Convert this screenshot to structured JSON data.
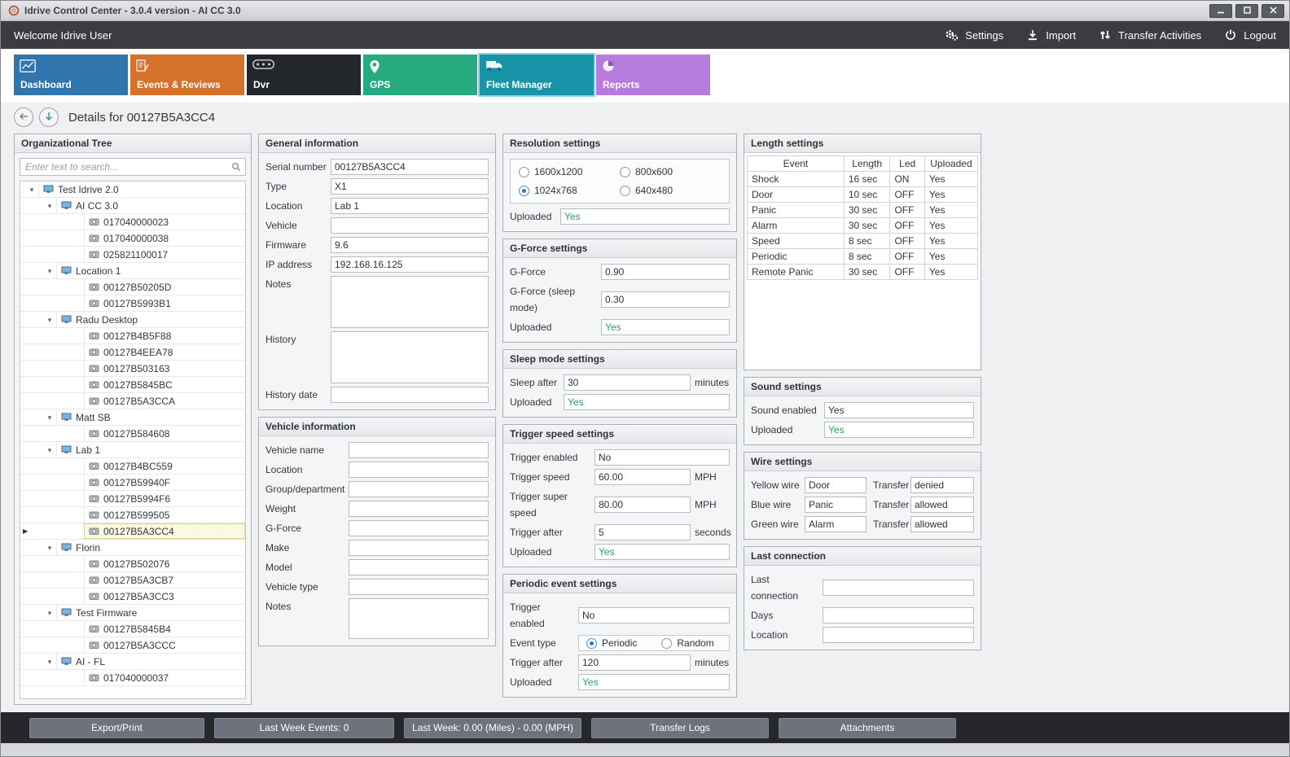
{
  "window": {
    "title": "Idrive Control Center - 3.0.4 version - AI CC 3.0",
    "controls": [
      {
        "id": "minimize",
        "icon": "minimize-icon"
      },
      {
        "id": "maximize",
        "icon": "maximize-icon"
      },
      {
        "id": "close",
        "icon": "close-icon"
      }
    ]
  },
  "toolbar": {
    "welcome": "Welcome Idrive User",
    "actions": [
      {
        "id": "settings",
        "label": "Settings",
        "icon": "gears-icon"
      },
      {
        "id": "import",
        "label": "Import",
        "icon": "import-icon"
      },
      {
        "id": "transfer-activities",
        "label": "Transfer Activities",
        "icon": "transfer-icon"
      },
      {
        "id": "logout",
        "label": "Logout",
        "icon": "power-icon"
      }
    ]
  },
  "tabs": [
    {
      "label": "Dashboard",
      "color": "#2E76AD",
      "icon": "dashboard-icon",
      "selected": false
    },
    {
      "label": "Events & Reviews",
      "color": "#D4712B",
      "icon": "events-icon",
      "selected": false
    },
    {
      "label": "Dvr",
      "color": "#23262B",
      "icon": "dvr-icon",
      "selected": false
    },
    {
      "label": "GPS",
      "color": "#27AA80",
      "icon": "gps-icon",
      "selected": false
    },
    {
      "label": "Fleet Manager",
      "color": "#1794A7",
      "icon": "fleet-icon",
      "selected": true
    },
    {
      "label": "Reports",
      "color": "#B77ADF",
      "icon": "reports-icon",
      "selected": false
    }
  ],
  "details": {
    "title": "Details for 00127B5A3CC4"
  },
  "org_tree": {
    "title": "Organizational Tree",
    "search_placeholder": "Enter text to search...",
    "items": [
      {
        "label": "Test Idrive 2.0",
        "level": 0,
        "type": "group",
        "expanded": true
      },
      {
        "label": "AI CC 3.0",
        "level": 1,
        "type": "group",
        "expanded": true
      },
      {
        "label": "017040000023",
        "level": 2,
        "type": "device"
      },
      {
        "label": "017040000038",
        "level": 2,
        "type": "device"
      },
      {
        "label": "025821100017",
        "level": 2,
        "type": "device"
      },
      {
        "label": "Location 1",
        "level": 1,
        "type": "group",
        "expanded": true
      },
      {
        "label": "00127B50205D",
        "level": 2,
        "type": "device"
      },
      {
        "label": "00127B5993B1",
        "level": 2,
        "type": "device"
      },
      {
        "label": "Radu Desktop",
        "level": 1,
        "type": "group",
        "expanded": true
      },
      {
        "label": "00127B4B5F88",
        "level": 2,
        "type": "device"
      },
      {
        "label": "00127B4EEA78",
        "level": 2,
        "type": "device"
      },
      {
        "label": "00127B503163",
        "level": 2,
        "type": "device"
      },
      {
        "label": "00127B5845BC",
        "level": 2,
        "type": "device"
      },
      {
        "label": "00127B5A3CCA",
        "level": 2,
        "type": "device"
      },
      {
        "label": "Matt SB",
        "level": 1,
        "type": "group",
        "expanded": true
      },
      {
        "label": "00127B584608",
        "level": 2,
        "type": "device"
      },
      {
        "label": "Lab 1",
        "level": 1,
        "type": "group",
        "expanded": true
      },
      {
        "label": "00127B4BC559",
        "level": 2,
        "type": "device"
      },
      {
        "label": "00127B59940F",
        "level": 2,
        "type": "device"
      },
      {
        "label": "00127B5994F6",
        "level": 2,
        "type": "device"
      },
      {
        "label": "00127B599505",
        "level": 2,
        "type": "device"
      },
      {
        "label": "00127B5A3CC4",
        "level": 2,
        "type": "device",
        "selected": true
      },
      {
        "label": "Florin",
        "level": 1,
        "type": "group",
        "expanded": true
      },
      {
        "label": "00127B502076",
        "level": 2,
        "type": "device"
      },
      {
        "label": "00127B5A3CB7",
        "level": 2,
        "type": "device"
      },
      {
        "label": "00127B5A3CC3",
        "level": 2,
        "type": "device"
      },
      {
        "label": "Test Firmware",
        "level": 1,
        "type": "group",
        "expanded": true
      },
      {
        "label": "00127B5845B4",
        "level": 2,
        "type": "device"
      },
      {
        "label": "00127B5A3CCC",
        "level": 2,
        "type": "device"
      },
      {
        "label": "AI - FL",
        "level": 1,
        "type": "group",
        "expanded": true
      },
      {
        "label": "017040000037",
        "level": 2,
        "type": "device"
      }
    ]
  },
  "general_information": {
    "title": "General information",
    "fields": [
      {
        "label": "Serial number",
        "value": "00127B5A3CC4"
      },
      {
        "label": "Type",
        "value": "X1"
      },
      {
        "label": "Location",
        "value": "Lab 1"
      },
      {
        "label": "Vehicle",
        "value": ""
      },
      {
        "label": "Firmware",
        "value": "9.6"
      },
      {
        "label": "IP address",
        "value": "192.168.16.125"
      },
      {
        "label": "Notes",
        "value": "",
        "type": "textarea"
      },
      {
        "label": "History",
        "value": "",
        "type": "textarea"
      },
      {
        "label": "History date",
        "value": ""
      }
    ]
  },
  "vehicle_information": {
    "title": "Vehicle information",
    "fields": [
      {
        "label": "Vehicle name",
        "value": ""
      },
      {
        "label": "Location",
        "value": ""
      },
      {
        "label": "Group/department",
        "value": ""
      },
      {
        "label": "Weight",
        "value": ""
      },
      {
        "label": "G-Force",
        "value": ""
      },
      {
        "label": "Make",
        "value": ""
      },
      {
        "label": "Model",
        "value": ""
      },
      {
        "label": "Vehicle type",
        "value": ""
      },
      {
        "label": "Notes",
        "value": "",
        "type": "textarea"
      }
    ]
  },
  "resolution_settings": {
    "title": "Resolution settings",
    "fields": [
      {
        "type": "radio-grid",
        "options": [
          {
            "label": "1600x1200",
            "selected": false
          },
          {
            "label": "800x600",
            "selected": false
          },
          {
            "label": "1024x768",
            "selected": true
          },
          {
            "label": "640x480",
            "selected": false
          }
        ]
      },
      {
        "label": "Uploaded",
        "value": "Yes",
        "green": true
      }
    ]
  },
  "gforce_settings": {
    "title": "G-Force settings",
    "fields": [
      {
        "label": "G-Force",
        "value": "0.90"
      },
      {
        "label": "G-Force (sleep mode)",
        "value": "0.30"
      },
      {
        "label": "Uploaded",
        "value": "Yes",
        "green": true
      }
    ]
  },
  "sleep_settings": {
    "title": "Sleep mode settings",
    "fields": [
      {
        "label": "Sleep after",
        "value": "30",
        "suffix": "minutes"
      },
      {
        "label": "Uploaded",
        "value": "Yes",
        "green": true
      }
    ]
  },
  "trigger_speed_settings": {
    "title": "Trigger speed settings",
    "fields": [
      {
        "label": "Trigger enabled",
        "value": "No"
      },
      {
        "label": "Trigger speed",
        "value": "60.00",
        "suffix": "MPH"
      },
      {
        "label": "Trigger super speed",
        "value": "80.00",
        "suffix": "MPH"
      },
      {
        "label": "Trigger after",
        "value": "5",
        "suffix": "seconds"
      },
      {
        "label": "Uploaded",
        "value": "Yes",
        "green": true
      }
    ]
  },
  "periodic_settings": {
    "title": "Periodic event settings",
    "fields": [
      {
        "label": "Trigger enabled",
        "value": "No"
      },
      {
        "label": "Event type",
        "type": "radios",
        "options": [
          {
            "label": "Periodic",
            "selected": true
          },
          {
            "label": "Random",
            "selected": false
          }
        ]
      },
      {
        "label": "Trigger after",
        "value": "120",
        "suffix": "minutes"
      },
      {
        "label": "Uploaded",
        "value": "Yes",
        "green": true
      }
    ]
  },
  "length_settings": {
    "title": "Length settings",
    "columns": [
      "Event",
      "Length",
      "Led",
      "Uploaded"
    ],
    "rows": [
      [
        "Shock",
        "16 sec",
        "ON",
        "Yes"
      ],
      [
        "Door",
        "10 sec",
        "OFF",
        "Yes"
      ],
      [
        "Panic",
        "30 sec",
        "OFF",
        "Yes"
      ],
      [
        "Alarm",
        "30 sec",
        "OFF",
        "Yes"
      ],
      [
        "Speed",
        "8 sec",
        "OFF",
        "Yes"
      ],
      [
        "Periodic",
        "8 sec",
        "OFF",
        "Yes"
      ],
      [
        "Remote Panic",
        "30 sec",
        "OFF",
        "Yes"
      ]
    ]
  },
  "sound_settings": {
    "title": "Sound settings",
    "fields": [
      {
        "label": "Sound enabled",
        "value": "Yes"
      },
      {
        "label": "Uploaded",
        "value": "Yes",
        "green": true
      }
    ]
  },
  "wire_settings": {
    "title": "Wire settings",
    "fields": [
      {
        "type": "pair",
        "label": "Yellow wire",
        "value": "Door",
        "label2": "Transfer",
        "value2": "denied"
      },
      {
        "type": "pair",
        "label": "Blue wire",
        "value": "Panic",
        "label2": "Transfer",
        "value2": "allowed"
      },
      {
        "type": "pair",
        "label": "Green wire",
        "value": "Alarm",
        "label2": "Transfer",
        "value2": "allowed"
      }
    ]
  },
  "last_connection": {
    "title": "Last connection",
    "fields": [
      {
        "label": "Last connection",
        "value": ""
      },
      {
        "label": "Days",
        "value": ""
      },
      {
        "label": "Location",
        "value": ""
      }
    ]
  },
  "footer": {
    "buttons": [
      "Export/Print",
      "Last Week Events: 0",
      "Last Week: 0.00 (Miles) - 0.00 (MPH)",
      "Transfer Logs",
      "Attachments"
    ]
  },
  "colors": {
    "accent_green": "#27A351",
    "selected_tab_outline": "#8FD2E9",
    "selected_tree_row_bg": "#FBF9E0",
    "toolbar_bg": "#3B3C3F",
    "footer_bg": "#25272A",
    "footer_button_bg": "#6E737B"
  }
}
